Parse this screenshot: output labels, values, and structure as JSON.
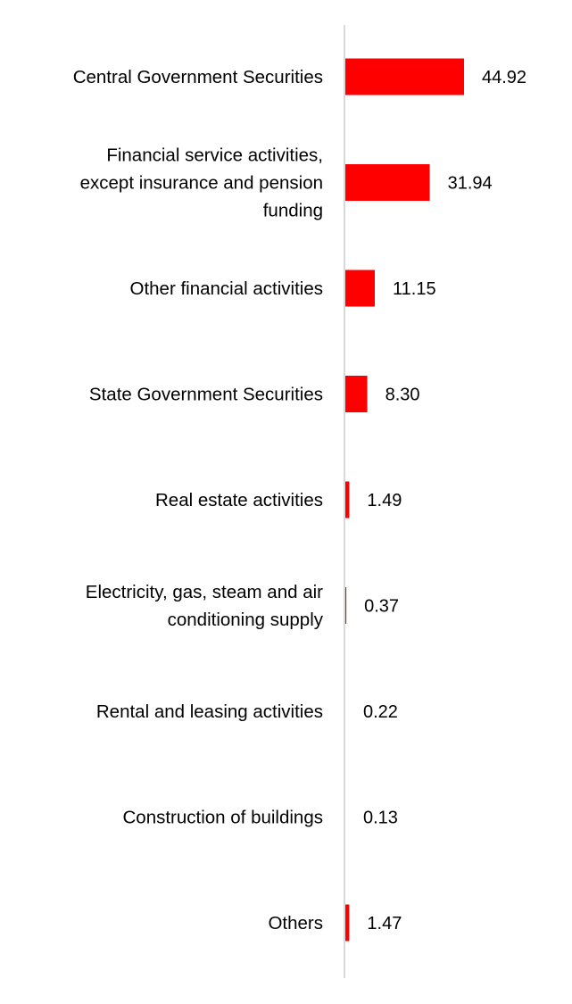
{
  "chart_data": {
    "type": "bar",
    "orientation": "horizontal",
    "categories": [
      [
        "Central Government Securities"
      ],
      [
        "Financial service activities,",
        "except insurance and pension",
        "funding"
      ],
      [
        "Other financial activities"
      ],
      [
        "State Government Securities"
      ],
      [
        "Real estate activities"
      ],
      [
        "Electricity, gas, steam and air",
        "conditioning supply"
      ],
      [
        "Rental and leasing activities"
      ],
      [
        "Construction of buildings"
      ],
      [
        "Others"
      ]
    ],
    "values": [
      44.92,
      31.94,
      11.15,
      8.3,
      1.49,
      0.37,
      0.22,
      0.13,
      1.47
    ],
    "data_labels": [
      "44.92",
      "31.94",
      "11.15",
      "8.30",
      "1.49",
      "0.37",
      "0.22",
      "0.13",
      "1.47"
    ],
    "bar_color": "#ff0000",
    "axis_color": "#d9d9d9",
    "grid": false,
    "legend": "none",
    "title": "",
    "xlabel": "",
    "ylabel": ""
  }
}
